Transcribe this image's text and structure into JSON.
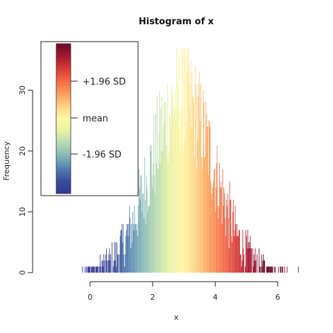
{
  "chart_data": {
    "type": "bar",
    "title": "Histogram of x",
    "xlabel": "x",
    "ylabel": "Frequency",
    "xlim": [
      -1.55,
      7.1
    ],
    "ylim": [
      0,
      38
    ],
    "x_ticks": [
      "0",
      "2",
      "4",
      "6"
    ],
    "y_ticks": [
      "0",
      "10",
      "20",
      "30"
    ],
    "distribution": {
      "bin_width": 0.02,
      "range": [
        -0.55,
        6.85
      ],
      "mean": 2.95,
      "sd": 1.0,
      "peak_frequency": 37
    },
    "grid": false,
    "colorbar": {
      "position": "top-left",
      "labels": [
        "+1.96 SD",
        "mean",
        "-1.96 SD"
      ],
      "colors": [
        "#6b0a26",
        "#a31830",
        "#d83a35",
        "#f26d46",
        "#fa9d59",
        "#fdd183",
        "#fff6a4",
        "#e6f2a4",
        "#b4d8b2",
        "#82b6b8",
        "#5180b2",
        "#3b4d98",
        "#313695"
      ]
    }
  }
}
